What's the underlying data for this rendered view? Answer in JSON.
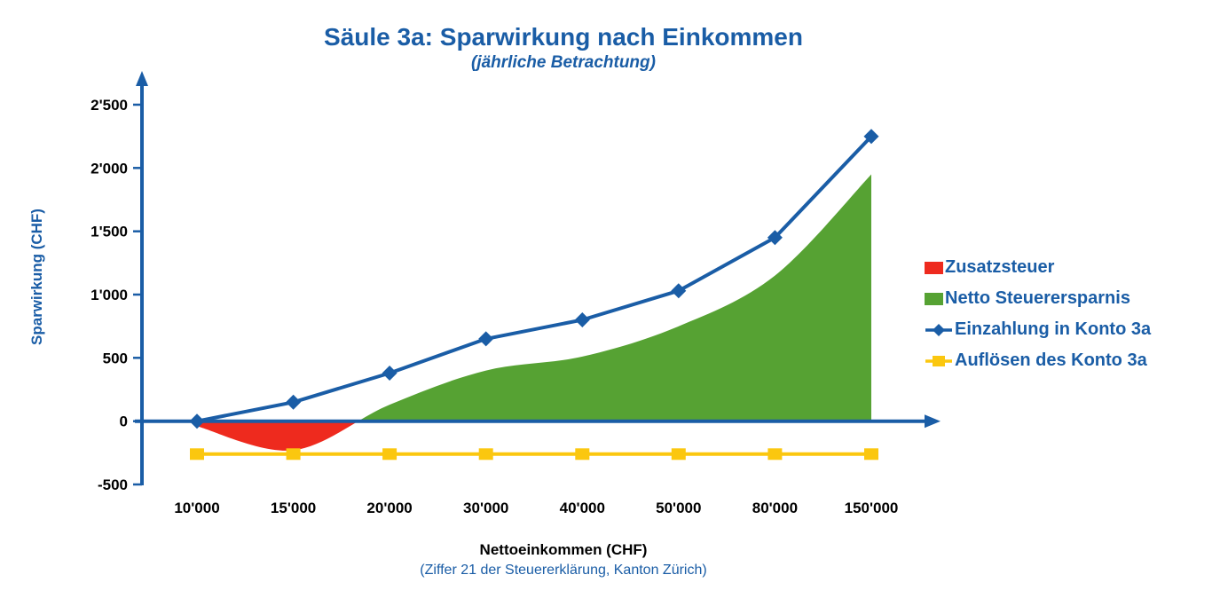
{
  "chart_data": {
    "type": "area",
    "title": "Säule 3a: Sparwirkung nach Einkommen",
    "subtitle": "(jährliche Betrachtung)",
    "ylabel": "Sparwirkung (CHF)",
    "xlabel": "Nettoeinkommen (CHF)",
    "xlabel_note": "(Ziffer 21 der Steuererklärung, Kanton Zürich)",
    "categories": [
      "10'000",
      "15'000",
      "20'000",
      "30'000",
      "40'000",
      "50'000",
      "80'000",
      "150'000"
    ],
    "ylim": [
      -500,
      2500
    ],
    "grid": false,
    "legend_position": "right",
    "axis_color": "#1A5DA6",
    "yticks": [
      {
        "value": -500,
        "label": "-500"
      },
      {
        "value": 0,
        "label": "0"
      },
      {
        "value": 500,
        "label": "500"
      },
      {
        "value": 1000,
        "label": "1'000"
      },
      {
        "value": 1500,
        "label": "1'500"
      },
      {
        "value": 2000,
        "label": "2'000"
      },
      {
        "value": 2500,
        "label": "2'500"
      }
    ],
    "area_series": {
      "positive_label": "Netto Steuerersparnis",
      "negative_label": "Zusatzsteuer",
      "positive_color": "#56A233",
      "negative_color": "#EE2A1E",
      "values": [
        -40,
        -230,
        130,
        400,
        510,
        750,
        1150,
        1950
      ]
    },
    "line_series": [
      {
        "label": "Einzahlung in Konto 3a",
        "color": "#1A5DA6",
        "marker": "diamond",
        "values": [
          0,
          150,
          380,
          650,
          800,
          1030,
          1450,
          2250
        ]
      },
      {
        "label": "Auflösen des Konto 3a",
        "color": "#FBC70F",
        "marker": "square",
        "values": [
          -260,
          -260,
          -260,
          -260,
          -260,
          -260,
          -260,
          -260
        ]
      }
    ],
    "legend": [
      {
        "label": "Zusatzsteuer",
        "marker": "rect",
        "color": "#EE2A1E"
      },
      {
        "label": "Netto Steuerersparnis",
        "marker": "rect",
        "color": "#56A233"
      },
      {
        "label": "Einzahlung in Konto 3a",
        "marker": "line-diamond",
        "color": "#1A5DA6"
      },
      {
        "label": "Auflösen des Konto 3a",
        "marker": "line-square",
        "color": "#FBC70F"
      }
    ]
  }
}
